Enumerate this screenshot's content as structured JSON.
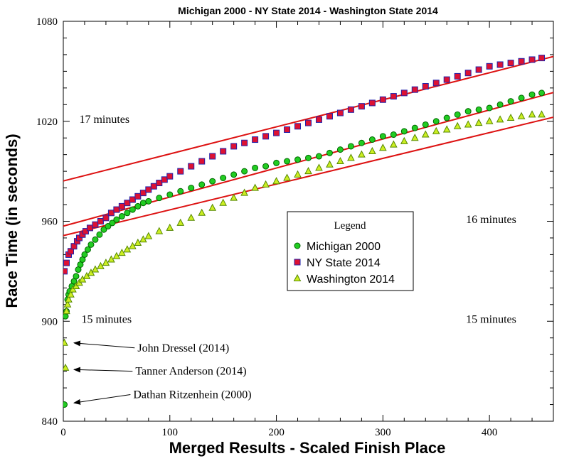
{
  "chart_data": {
    "type": "scatter",
    "title": "Michigan 2000 - NY State 2014 - Washington State 2014",
    "xlabel": "Merged Results - Scaled Finish Place",
    "ylabel": "Race Time (in seconds)",
    "xlim": [
      0,
      460
    ],
    "ylim": [
      840,
      1080
    ],
    "x_major_ticks": [
      0,
      100,
      200,
      300,
      400
    ],
    "x_tick_labels": [
      "0",
      "100",
      "200",
      "300",
      "400"
    ],
    "x_minor_step": 20,
    "y_major_ticks": [
      840,
      900,
      960,
      1020,
      1080
    ],
    "y_tick_labels": [
      "840",
      "900",
      "960",
      "1020",
      "1080"
    ],
    "y_minor_step": 10,
    "grid": false,
    "legend": {
      "title": "Legend",
      "position": "center-right",
      "entries": [
        {
          "label": "Michigan 2000",
          "marker": "circle",
          "color": "#22cc22"
        },
        {
          "label": "NY State 2014",
          "marker": "square",
          "color": "#dd1133"
        },
        {
          "label": "Washington 2014",
          "marker": "triangle",
          "color": "#ccee22"
        }
      ]
    },
    "series": [
      {
        "name": "Michigan 2000",
        "marker": "circle",
        "color": "#22cc22",
        "edge_color": "#006600",
        "points": [
          [
            1,
            850
          ],
          [
            2,
            903
          ],
          [
            3,
            906
          ],
          [
            4,
            913
          ],
          [
            5,
            916
          ],
          [
            6,
            918
          ],
          [
            8,
            921
          ],
          [
            10,
            924
          ],
          [
            12,
            927
          ],
          [
            14,
            931
          ],
          [
            16,
            934
          ],
          [
            18,
            937
          ],
          [
            20,
            940
          ],
          [
            23,
            943
          ],
          [
            26,
            946
          ],
          [
            30,
            949
          ],
          [
            34,
            952
          ],
          [
            38,
            955
          ],
          [
            42,
            957
          ],
          [
            46,
            959
          ],
          [
            50,
            961
          ],
          [
            55,
            963
          ],
          [
            60,
            965
          ],
          [
            65,
            967
          ],
          [
            70,
            969
          ],
          [
            75,
            971
          ],
          [
            80,
            972
          ],
          [
            90,
            974
          ],
          [
            100,
            976
          ],
          [
            110,
            978
          ],
          [
            120,
            980
          ],
          [
            130,
            982
          ],
          [
            140,
            984
          ],
          [
            150,
            986
          ],
          [
            160,
            988
          ],
          [
            170,
            990
          ],
          [
            180,
            992
          ],
          [
            190,
            993
          ],
          [
            200,
            995
          ],
          [
            210,
            996
          ],
          [
            220,
            997
          ],
          [
            230,
            998
          ],
          [
            240,
            999
          ],
          [
            250,
            1001
          ],
          [
            260,
            1003
          ],
          [
            270,
            1005
          ],
          [
            280,
            1007
          ],
          [
            290,
            1009
          ],
          [
            300,
            1011
          ],
          [
            310,
            1012
          ],
          [
            320,
            1014
          ],
          [
            330,
            1016
          ],
          [
            340,
            1018
          ],
          [
            350,
            1020
          ],
          [
            360,
            1022
          ],
          [
            370,
            1024
          ],
          [
            380,
            1026
          ],
          [
            390,
            1027
          ],
          [
            400,
            1028
          ],
          [
            410,
            1030
          ],
          [
            420,
            1032
          ],
          [
            430,
            1034
          ],
          [
            440,
            1036
          ],
          [
            449,
            1037
          ]
        ]
      },
      {
        "name": "NY State 2014",
        "marker": "square",
        "color": "#dd1133",
        "edge_color": "#2222aa",
        "points": [
          [
            1,
            930
          ],
          [
            3,
            935
          ],
          [
            5,
            940
          ],
          [
            7,
            942
          ],
          [
            10,
            945
          ],
          [
            13,
            948
          ],
          [
            15,
            950
          ],
          [
            18,
            952
          ],
          [
            21,
            954
          ],
          [
            25,
            956
          ],
          [
            30,
            958
          ],
          [
            35,
            960
          ],
          [
            40,
            962
          ],
          [
            45,
            965
          ],
          [
            50,
            967
          ],
          [
            55,
            969
          ],
          [
            60,
            971
          ],
          [
            65,
            973
          ],
          [
            70,
            975
          ],
          [
            75,
            977
          ],
          [
            80,
            979
          ],
          [
            85,
            981
          ],
          [
            90,
            983
          ],
          [
            95,
            985
          ],
          [
            100,
            987
          ],
          [
            110,
            990
          ],
          [
            120,
            993
          ],
          [
            130,
            996
          ],
          [
            140,
            999
          ],
          [
            150,
            1002
          ],
          [
            160,
            1005
          ],
          [
            170,
            1007
          ],
          [
            180,
            1009
          ],
          [
            190,
            1011
          ],
          [
            200,
            1013
          ],
          [
            210,
            1015
          ],
          [
            220,
            1017
          ],
          [
            230,
            1019
          ],
          [
            240,
            1021
          ],
          [
            250,
            1023
          ],
          [
            260,
            1025
          ],
          [
            270,
            1027
          ],
          [
            280,
            1029
          ],
          [
            290,
            1031
          ],
          [
            300,
            1033
          ],
          [
            310,
            1035
          ],
          [
            320,
            1037
          ],
          [
            330,
            1039
          ],
          [
            340,
            1041
          ],
          [
            350,
            1043
          ],
          [
            360,
            1045
          ],
          [
            370,
            1047
          ],
          [
            380,
            1049
          ],
          [
            390,
            1051
          ],
          [
            400,
            1053
          ],
          [
            410,
            1054
          ],
          [
            420,
            1055
          ],
          [
            430,
            1056
          ],
          [
            440,
            1057
          ],
          [
            449,
            1058
          ]
        ]
      },
      {
        "name": "Washington 2014",
        "marker": "triangle",
        "color": "#ccee22",
        "edge_color": "#558800",
        "points": [
          [
            1,
            887
          ],
          [
            2,
            872
          ],
          [
            3,
            906
          ],
          [
            4,
            910
          ],
          [
            5,
            913
          ],
          [
            7,
            916
          ],
          [
            9,
            919
          ],
          [
            12,
            921
          ],
          [
            15,
            923
          ],
          [
            18,
            925
          ],
          [
            22,
            927
          ],
          [
            26,
            929
          ],
          [
            30,
            931
          ],
          [
            35,
            933
          ],
          [
            40,
            935
          ],
          [
            45,
            937
          ],
          [
            50,
            939
          ],
          [
            55,
            941
          ],
          [
            60,
            943
          ],
          [
            65,
            945
          ],
          [
            70,
            947
          ],
          [
            75,
            949
          ],
          [
            80,
            951
          ],
          [
            90,
            954
          ],
          [
            100,
            956
          ],
          [
            110,
            959
          ],
          [
            120,
            962
          ],
          [
            130,
            965
          ],
          [
            140,
            968
          ],
          [
            150,
            971
          ],
          [
            160,
            974
          ],
          [
            170,
            977
          ],
          [
            180,
            980
          ],
          [
            190,
            982
          ],
          [
            200,
            984
          ],
          [
            210,
            986
          ],
          [
            220,
            988
          ],
          [
            230,
            990
          ],
          [
            240,
            992
          ],
          [
            250,
            994
          ],
          [
            260,
            996
          ],
          [
            270,
            998
          ],
          [
            280,
            1000
          ],
          [
            290,
            1002
          ],
          [
            300,
            1004
          ],
          [
            310,
            1006
          ],
          [
            320,
            1008
          ],
          [
            330,
            1010
          ],
          [
            340,
            1012
          ],
          [
            350,
            1014
          ],
          [
            360,
            1015
          ],
          [
            370,
            1017
          ],
          [
            380,
            1018
          ],
          [
            390,
            1019
          ],
          [
            400,
            1020
          ],
          [
            410,
            1021
          ],
          [
            420,
            1022
          ],
          [
            430,
            1023
          ],
          [
            440,
            1024
          ],
          [
            449,
            1024
          ]
        ]
      }
    ],
    "trend_lines": [
      {
        "color": "#dd1111",
        "x": [
          -35,
          470
        ],
        "y": [
          978.5,
          1060.5
        ]
      },
      {
        "color": "#dd1111",
        "x": [
          -35,
          470
        ],
        "y": [
          951,
          1039
        ]
      },
      {
        "color": "#dd1111",
        "x": [
          -35,
          470
        ],
        "y": [
          946,
          1024
        ]
      }
    ],
    "annotations": [
      {
        "text": "17 minutes",
        "x": 15,
        "y": 1019
      },
      {
        "text": "16 minutes",
        "x": 378,
        "y": 959
      },
      {
        "text": "15 minutes",
        "x": 17,
        "y": 899
      },
      {
        "text": "15 minutes",
        "x": 378,
        "y": 899
      }
    ],
    "arrows": [
      {
        "text": "John Dressel (2014)",
        "from": [
          67,
          884
        ],
        "to": [
          10,
          887
        ]
      },
      {
        "text": "Tanner Anderson (2014)",
        "from": [
          65,
          870
        ],
        "to": [
          10,
          871
        ]
      },
      {
        "text": "Dathan Ritzenhein (2000)",
        "from": [
          63,
          856
        ],
        "to": [
          10,
          851
        ]
      }
    ]
  }
}
